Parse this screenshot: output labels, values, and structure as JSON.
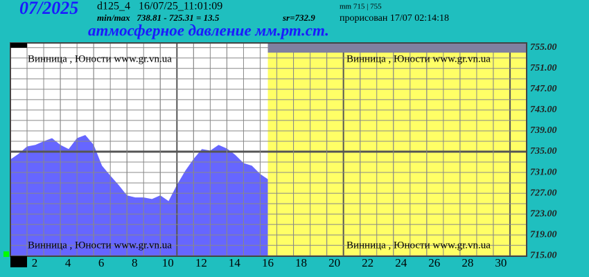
{
  "chart_data": {
    "type": "area",
    "period": "07/2025",
    "station_info": "d125_4   16/07/25_11:01:09",
    "minmax": "min/max   738.81 - 725.31 = 13.5",
    "mean": "sr=732.9",
    "range_info": "mm 715 | 755",
    "rendered": "прорисован 17/07 02:14:18",
    "title": "атмосферное давление мм.рт.ст.",
    "watermark": "Винница , Юности  www.gr.vn.ua",
    "color": "#6666ff",
    "future_color": "#ffff66",
    "x": [
      1,
      1.5,
      2,
      2.5,
      3,
      3.5,
      4,
      4.5,
      5,
      5.5,
      6,
      6.5,
      7,
      7.5,
      8,
      8.5,
      9,
      9.5,
      10,
      10.5,
      11,
      11.5,
      12,
      12.5,
      13,
      13.5,
      14,
      14.5,
      15,
      15.5,
      16,
      16.46
    ],
    "values": [
      733.5,
      734.6,
      736,
      736.3,
      737,
      737.6,
      736.3,
      735.5,
      737.6,
      738.2,
      736.3,
      732.3,
      730.4,
      728.6,
      726.6,
      726.2,
      726.2,
      725.9,
      726.6,
      725.5,
      728.6,
      731.3,
      733.6,
      735.5,
      735.2,
      736.3,
      735.6,
      734.4,
      732.8,
      732.3,
      730.7,
      729.7
    ],
    "xlim": [
      1,
      32
    ],
    "xticks": [
      2,
      4,
      6,
      8,
      10,
      12,
      14,
      16,
      18,
      20,
      22,
      24,
      26,
      28,
      30
    ],
    "ylim": [
      714.9,
      755.9
    ],
    "yticks": [
      {
        "value": 715,
        "label": "715.00"
      },
      {
        "value": 719,
        "label": "719.00"
      },
      {
        "value": 723,
        "label": "723.00"
      },
      {
        "value": 727,
        "label": "727.00"
      },
      {
        "value": 731,
        "label": "731.00"
      },
      {
        "value": 735,
        "label": "735.00"
      },
      {
        "value": 739,
        "label": "739.00"
      },
      {
        "value": 743,
        "label": "743.00"
      },
      {
        "value": 747,
        "label": "747.00"
      },
      {
        "value": 751,
        "label": "751.00"
      },
      {
        "value": 755,
        "label": "755.00"
      }
    ],
    "grid": true
  }
}
